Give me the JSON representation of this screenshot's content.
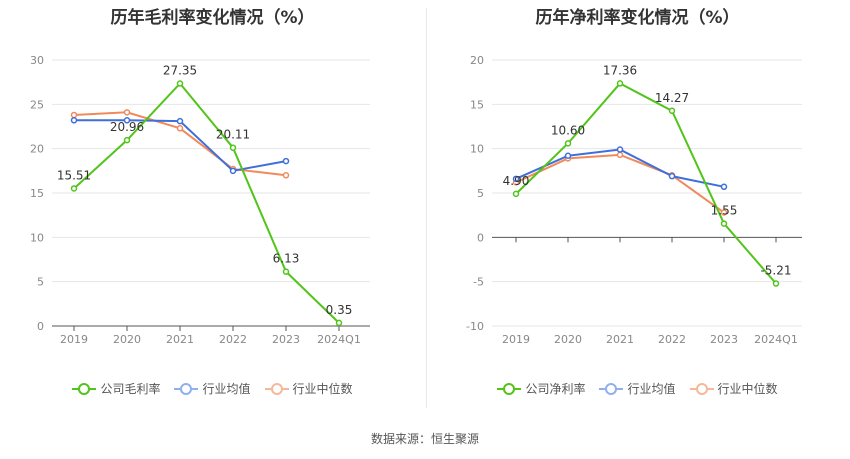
{
  "chart_data": [
    {
      "type": "line",
      "title": "历年毛利率变化情况（%）",
      "categories": [
        "2019",
        "2020",
        "2021",
        "2022",
        "2023",
        "2024Q1"
      ],
      "ylim": [
        0,
        30
      ],
      "yticks": [
        "0",
        "5",
        "10",
        "15",
        "20",
        "25",
        "30"
      ],
      "grid": true,
      "legend_position": "bottom",
      "series": [
        {
          "name": "公司毛利率",
          "color": "#52c41a",
          "values": [
            15.51,
            20.96,
            27.35,
            20.11,
            6.13,
            0.35
          ],
          "labels": [
            "15.51",
            "20.96",
            "27.35",
            "20.11",
            "6.13",
            "0.35"
          ]
        },
        {
          "name": "行业均值",
          "color": "#3f6fd8",
          "values": [
            23.2,
            23.2,
            23.1,
            17.5,
            18.6,
            null
          ]
        },
        {
          "name": "行业中位数",
          "color": "#f08a5d",
          "values": [
            23.8,
            24.1,
            22.3,
            17.7,
            17.0,
            null
          ]
        }
      ]
    },
    {
      "type": "line",
      "title": "历年净利率变化情况（%）",
      "categories": [
        "2019",
        "2020",
        "2021",
        "2022",
        "2023",
        "2024Q1"
      ],
      "ylim": [
        -10,
        20
      ],
      "yticks": [
        "-10",
        "-5",
        "0",
        "5",
        "10",
        "15",
        "20"
      ],
      "grid": true,
      "legend_position": "bottom",
      "series": [
        {
          "name": "公司净利率",
          "color": "#52c41a",
          "values": [
            4.9,
            10.6,
            17.36,
            14.27,
            1.55,
            -5.21
          ],
          "labels": [
            "4.90",
            "10.60",
            "17.36",
            "14.27",
            "1.55",
            "-5.21"
          ]
        },
        {
          "name": "行业均值",
          "color": "#3f6fd8",
          "values": [
            6.6,
            9.2,
            9.9,
            6.9,
            5.7,
            null
          ]
        },
        {
          "name": "行业中位数",
          "color": "#f08a5d",
          "values": [
            6.2,
            8.9,
            9.3,
            7.0,
            2.8,
            null
          ]
        }
      ]
    }
  ],
  "legend_left": [
    "公司毛利率",
    "行业均值",
    "行业中位数"
  ],
  "legend_right": [
    "公司净利率",
    "行业均值",
    "行业中位数"
  ],
  "source": "数据来源：恒生聚源",
  "colors": {
    "company": "#52c41a",
    "avg": "#3f6fd8",
    "median": "#f08a5d",
    "avg_legend": "#8fb0ec",
    "median_legend": "#f6b89a"
  }
}
